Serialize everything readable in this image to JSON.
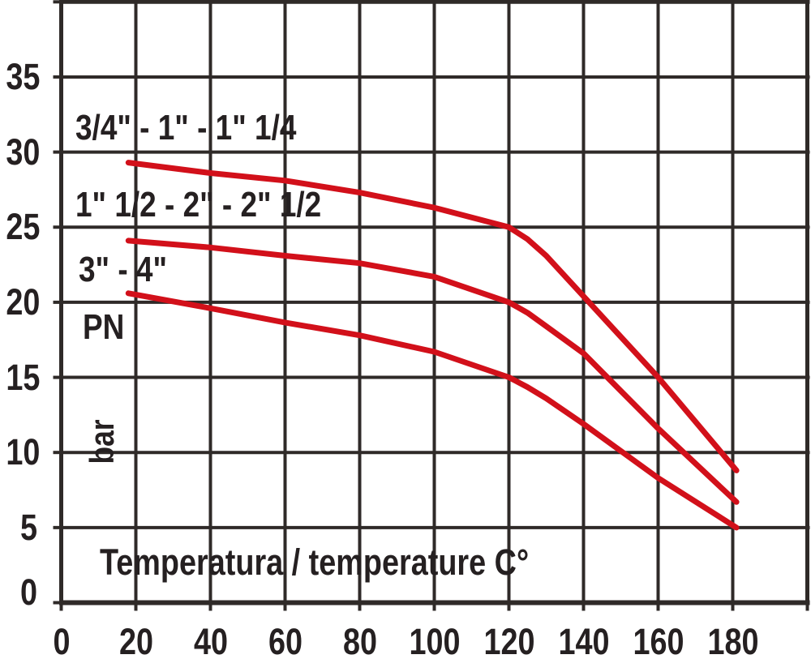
{
  "chart_data": {
    "type": "line",
    "title": "",
    "xlabel": "Temperatura / temperature C°",
    "ylabel_parts": {
      "pn": "PN",
      "unit": "bar"
    },
    "x_range": [
      0,
      200
    ],
    "x_grid_step": 20,
    "x_ticks": [
      0,
      20,
      40,
      60,
      80,
      100,
      120,
      140,
      160,
      180
    ],
    "y_range": [
      0,
      40
    ],
    "y_grid_step": 5,
    "y_ticks": [
      0,
      5,
      10,
      15,
      20,
      25,
      30,
      35
    ],
    "grid": true,
    "legend_position": "inline-annotations",
    "colors": {
      "curve": "#d2101a",
      "grid": "#2f2a28",
      "text": "#252021",
      "background": "#ffffff"
    },
    "series": [
      {
        "name": "3/4\" - 1\" - 1\" 1/4",
        "points": [
          [
            18,
            29.3
          ],
          [
            40,
            28.6
          ],
          [
            60,
            28.1
          ],
          [
            80,
            27.3
          ],
          [
            100,
            26.3
          ],
          [
            120,
            25
          ],
          [
            125,
            24.2
          ],
          [
            130,
            23.1
          ],
          [
            140,
            20.4
          ],
          [
            160,
            15
          ],
          [
            181,
            8.8
          ]
        ]
      },
      {
        "name": "1\" 1/2 - 2\" - 2\" 1/2",
        "points": [
          [
            18,
            24.1
          ],
          [
            40,
            23.65
          ],
          [
            60,
            23.1
          ],
          [
            80,
            22.6
          ],
          [
            100,
            21.7
          ],
          [
            120,
            20
          ],
          [
            125,
            19.3
          ],
          [
            130,
            18.4
          ],
          [
            140,
            16.6
          ],
          [
            160,
            11.6
          ],
          [
            181,
            6.7
          ]
        ]
      },
      {
        "name": "3\" - 4\"",
        "points": [
          [
            18,
            20.6
          ],
          [
            40,
            19.6
          ],
          [
            60,
            18.65
          ],
          [
            80,
            17.8
          ],
          [
            100,
            16.7
          ],
          [
            120,
            15
          ],
          [
            125,
            14.35
          ],
          [
            130,
            13.6
          ],
          [
            140,
            11.9
          ],
          [
            160,
            8.3
          ],
          [
            181,
            5.0
          ]
        ]
      }
    ]
  }
}
